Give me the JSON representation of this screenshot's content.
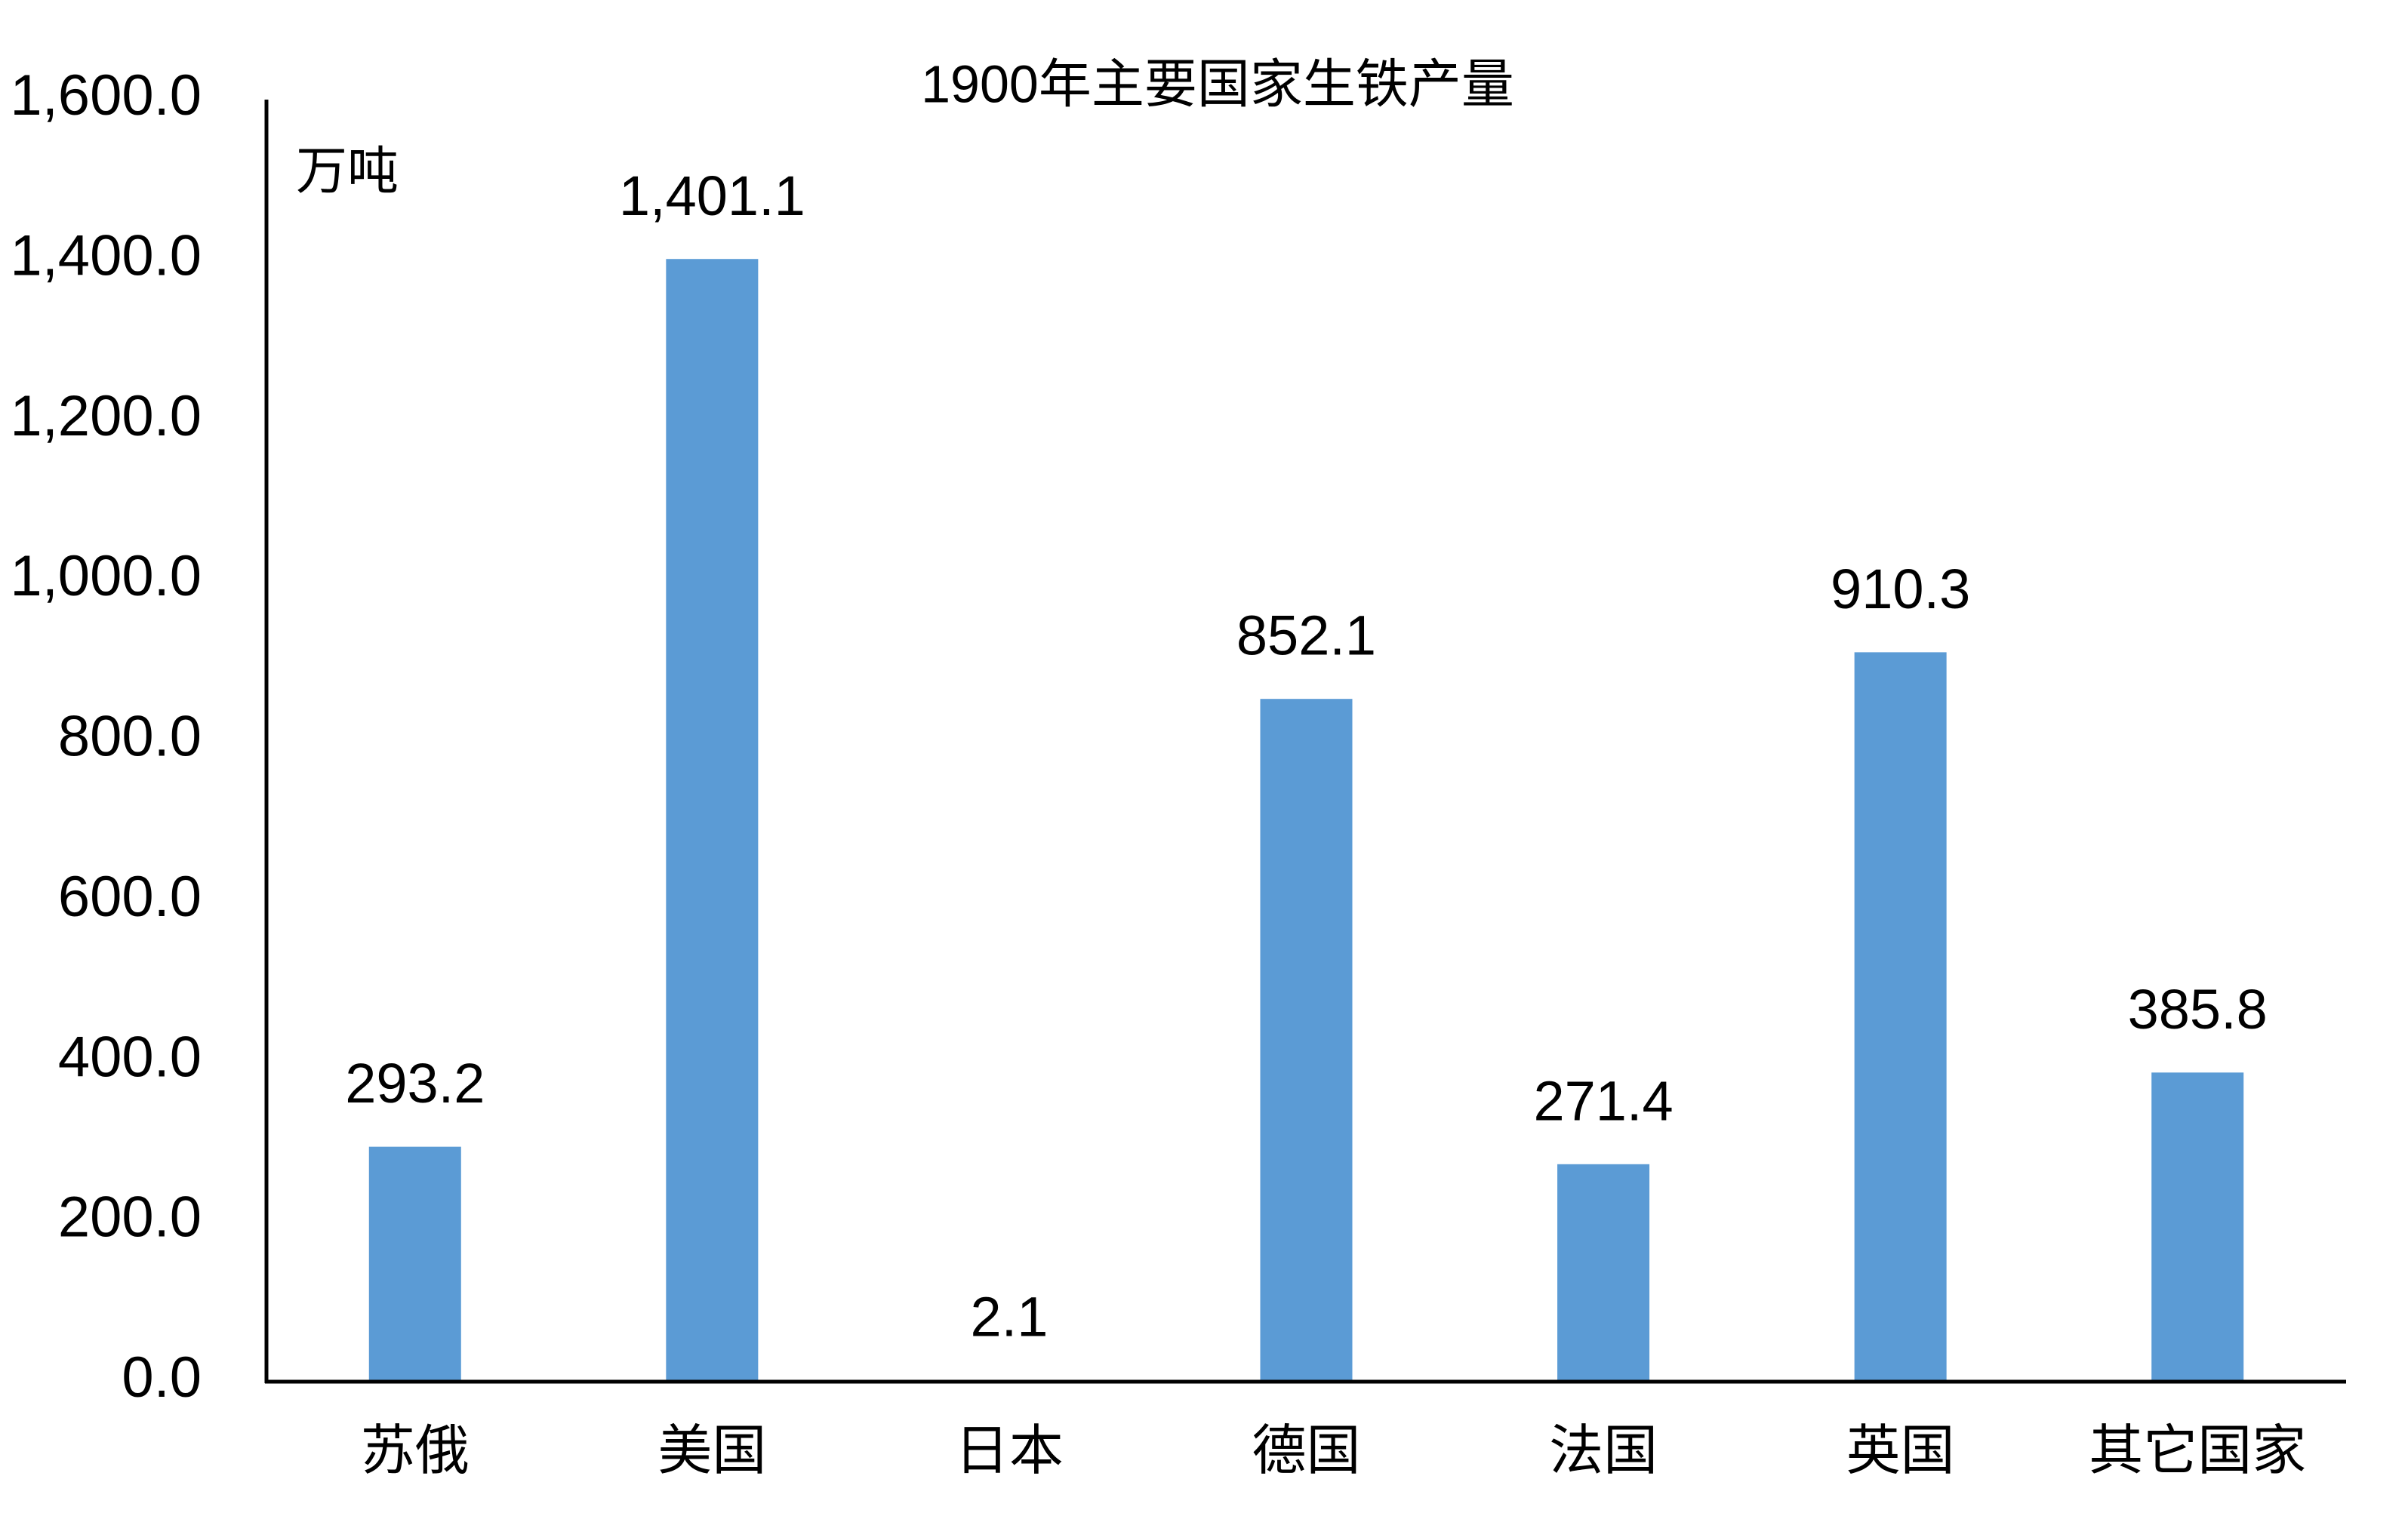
{
  "chart_data": {
    "type": "bar",
    "title": "1900年主要国家生铁产量",
    "ylabel": "万吨",
    "categories": [
      "苏俄",
      "美国",
      "日本",
      "德国",
      "法国",
      "英国",
      "其它国家"
    ],
    "values": [
      293.2,
      1401.1,
      2.1,
      852.1,
      271.4,
      910.3,
      385.8
    ],
    "value_labels": [
      "293.2",
      "1,401.1",
      "2.1",
      "852.1",
      "271.4",
      "910.3",
      "385.8"
    ],
    "color": "#5b9bd5",
    "ylim": [
      0,
      1600
    ],
    "yticks": [
      {
        "value": 0,
        "label": "0.0"
      },
      {
        "value": 200,
        "label": "200.0"
      },
      {
        "value": 400,
        "label": "400.0"
      },
      {
        "value": 600,
        "label": "600.0"
      },
      {
        "value": 800,
        "label": "800.0"
      },
      {
        "value": 1000,
        "label": "1,000.0"
      },
      {
        "value": 1200,
        "label": "1,200.0"
      },
      {
        "value": 1400,
        "label": "1,400.0"
      },
      {
        "value": 1600,
        "label": "1,600.0"
      }
    ],
    "grid": false
  }
}
